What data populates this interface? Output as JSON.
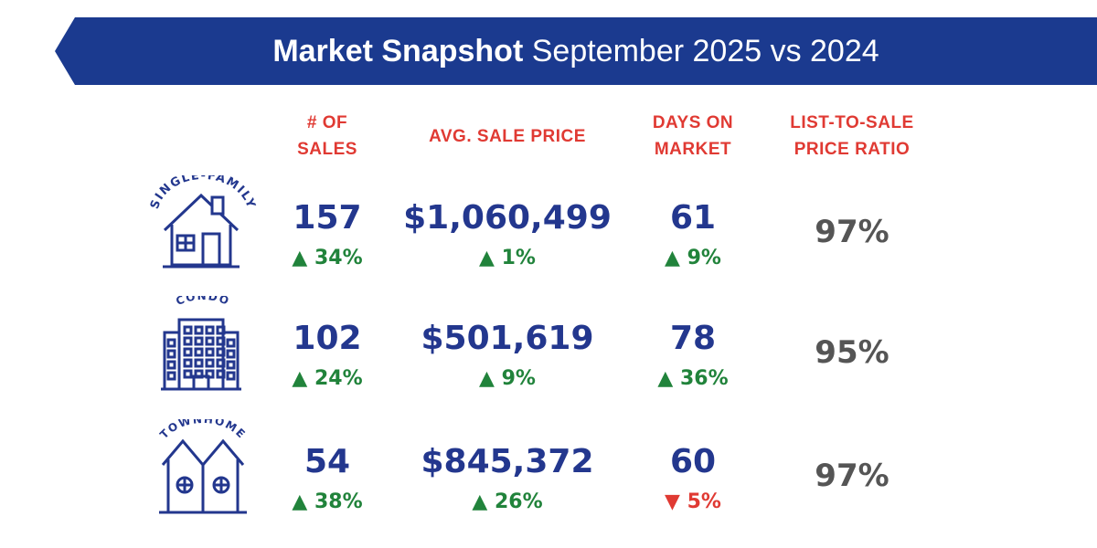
{
  "header": {
    "title_bold": "Market  Snapshot",
    "title_rest": "September 2025 vs 2024"
  },
  "columns": {
    "sales": [
      "# OF",
      "SALES"
    ],
    "price": [
      "AVG. SALE PRICE"
    ],
    "dom": [
      "DAYS ON",
      "MARKET"
    ],
    "ratio": [
      "LIST-TO-SALE",
      "PRICE RATIO"
    ]
  },
  "colors": {
    "brand": "#1b3a8f",
    "heading": "#e03a33",
    "up": "#21833b",
    "down": "#e03a33"
  },
  "rows": [
    {
      "type": "SINGLE-FAMILY",
      "icon": "house-icon",
      "sales": "157",
      "sales_chg": "34%",
      "sales_dir": "up",
      "price": "$1,060,499",
      "price_chg": "1%",
      "price_dir": "up",
      "dom": "61",
      "dom_chg": "9%",
      "dom_dir": "up",
      "ratio": "97%"
    },
    {
      "type": "CONDO",
      "icon": "building-icon",
      "sales": "102",
      "sales_chg": "24%",
      "sales_dir": "up",
      "price": "$501,619",
      "price_chg": "9%",
      "price_dir": "up",
      "dom": "78",
      "dom_chg": "36%",
      "dom_dir": "up",
      "ratio": "95%"
    },
    {
      "type": "TOWNHOME",
      "icon": "townhome-icon",
      "sales": "54",
      "sales_chg": "38%",
      "sales_dir": "up",
      "price": "$845,372",
      "price_chg": "26%",
      "price_dir": "up",
      "dom": "60",
      "dom_chg": "5%",
      "dom_dir": "down",
      "ratio": "97%"
    }
  ]
}
